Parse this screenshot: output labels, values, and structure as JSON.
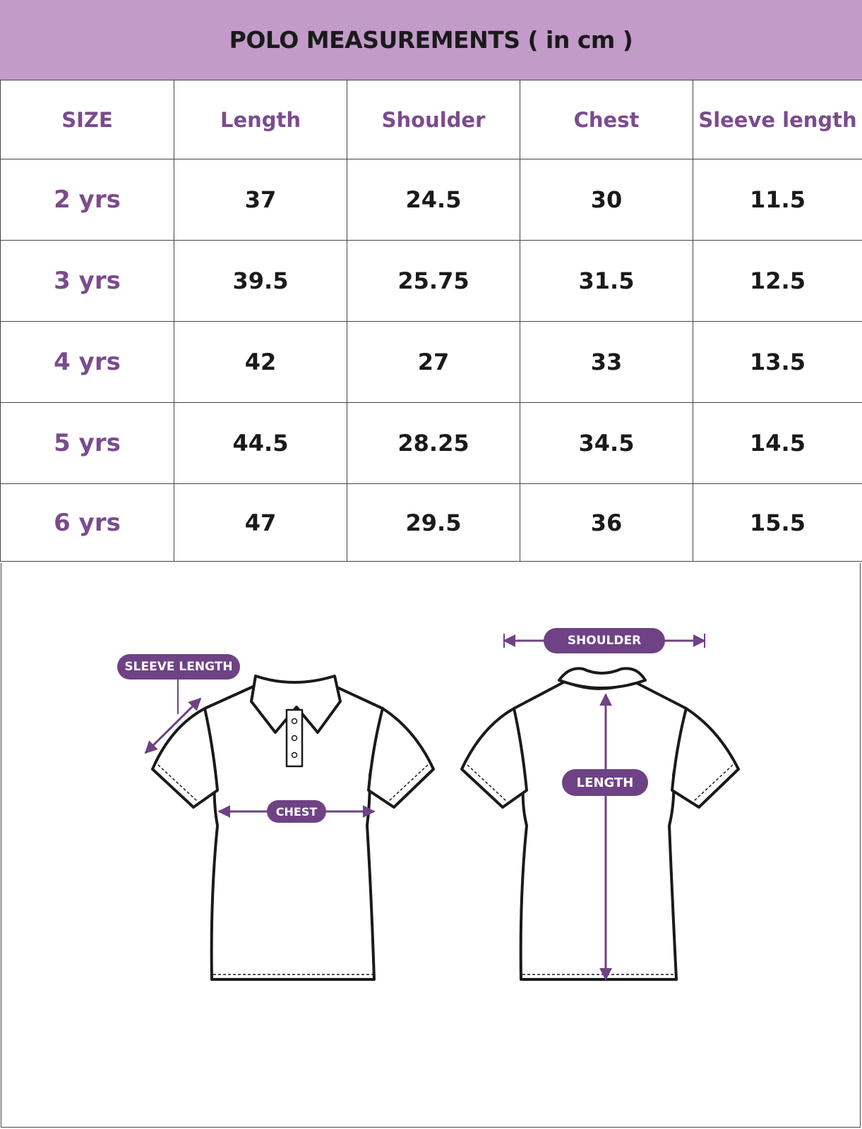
{
  "title": "POLO MEASUREMENTS ( in cm )",
  "table": {
    "size_header": "SIZE",
    "columns": [
      "Length",
      "Shoulder",
      "Chest",
      "Sleeve length"
    ],
    "rows": [
      {
        "size": "2 yrs",
        "values": [
          "37",
          "24.5",
          "30",
          "11.5"
        ]
      },
      {
        "size": "3 yrs",
        "values": [
          "39.5",
          "25.75",
          "31.5",
          "12.5"
        ]
      },
      {
        "size": "4 yrs",
        "values": [
          "42",
          "27",
          "33",
          "13.5"
        ]
      },
      {
        "size": "5 yrs",
        "values": [
          "44.5",
          "28.25",
          "34.5",
          "14.5"
        ]
      },
      {
        "size": "6 yrs",
        "values": [
          "47",
          "29.5",
          "36",
          "15.5"
        ]
      }
    ]
  },
  "diagram": {
    "labels": {
      "sleeve_length": "SLEEVE LENGTH",
      "chest": "CHEST",
      "shoulder": "SHOULDER",
      "length": "LENGTH"
    },
    "icons": [
      "polo-front-icon",
      "polo-back-icon"
    ]
  },
  "colors": {
    "banner": "#C29BC9",
    "accent": "#7A4C8E",
    "pill": "#6E4285",
    "text": "#1a1a1a"
  }
}
